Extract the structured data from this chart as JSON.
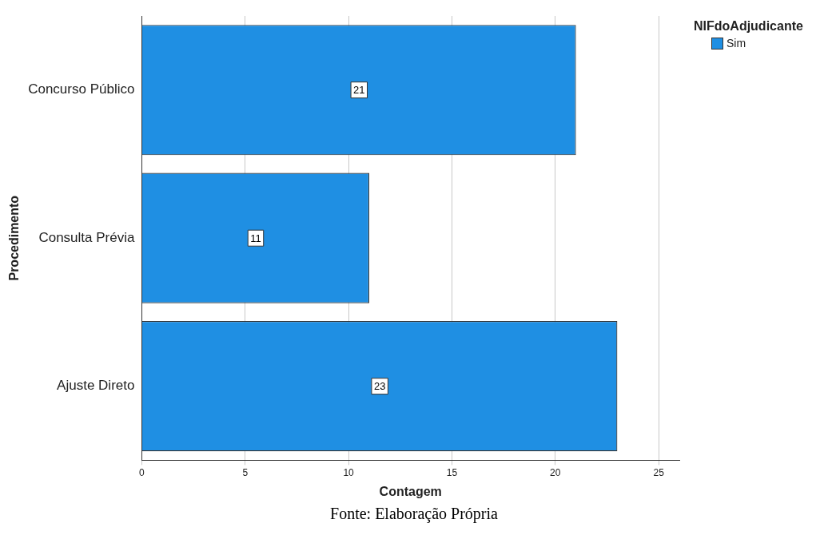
{
  "chart_data": {
    "type": "bar",
    "orientation": "horizontal",
    "xlabel": "Contagem",
    "ylabel": "Procedimento",
    "legend_title": "NIFdoAdjudicante",
    "categories": [
      "Concurso Público",
      "Consulta Prévia",
      "Ajuste Direto"
    ],
    "series": [
      {
        "name": "Sim",
        "color": "#1f8fe3",
        "values": [
          21,
          11,
          23
        ]
      }
    ],
    "xlim": [
      0,
      26
    ],
    "xticks": [
      0,
      5,
      10,
      15,
      20,
      25
    ],
    "grid": "x",
    "legend": "top right",
    "data_labels": true,
    "annotations": [
      "Fonte: Elaboração Própria"
    ]
  }
}
